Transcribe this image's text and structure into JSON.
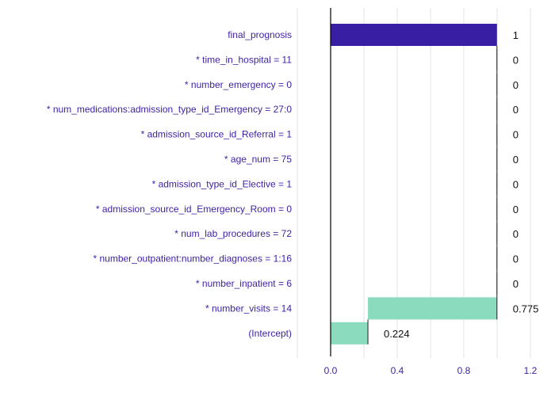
{
  "chart_data": {
    "type": "bar",
    "subtype": "break-down",
    "rows": [
      {
        "label": "final_prognosis",
        "start": 0,
        "end": 0.999,
        "display": "1",
        "kind": "prediction"
      },
      {
        "label": "* time_in_hospital = 11",
        "start": 0.999,
        "end": 0.999,
        "display": "0",
        "kind": "contribution"
      },
      {
        "label": "* number_emergency = 0",
        "start": 0.999,
        "end": 0.999,
        "display": "0",
        "kind": "contribution"
      },
      {
        "label": "* num_medications:admission_type_id_Emergency = 27:0",
        "start": 0.999,
        "end": 0.999,
        "display": "0",
        "kind": "contribution"
      },
      {
        "label": "* admission_source_id_Referral = 1",
        "start": 0.999,
        "end": 0.999,
        "display": "0",
        "kind": "contribution"
      },
      {
        "label": "* age_num = 75",
        "start": 0.999,
        "end": 0.999,
        "display": "0",
        "kind": "contribution"
      },
      {
        "label": "* admission_type_id_Elective = 1",
        "start": 0.999,
        "end": 0.999,
        "display": "0",
        "kind": "contribution"
      },
      {
        "label": "* admission_source_id_Emergency_Room = 0",
        "start": 0.999,
        "end": 0.999,
        "display": "0",
        "kind": "contribution"
      },
      {
        "label": "* num_lab_procedures = 72",
        "start": 0.999,
        "end": 0.999,
        "display": "0",
        "kind": "contribution"
      },
      {
        "label": "* number_outpatient:number_diagnoses = 1:16",
        "start": 0.999,
        "end": 0.999,
        "display": "0",
        "kind": "contribution"
      },
      {
        "label": "* number_inpatient = 6",
        "start": 0.999,
        "end": 0.999,
        "display": "0",
        "kind": "contribution"
      },
      {
        "label": "* number_visits = 14",
        "start": 0.224,
        "end": 0.999,
        "display": "0.775",
        "kind": "contribution"
      },
      {
        "label": "(Intercept)",
        "start": 0,
        "end": 0.224,
        "display": "0.224",
        "kind": "intercept"
      }
    ],
    "x_ticks": [
      "0.0",
      "0.4",
      "0.8",
      "1.2"
    ],
    "x_tick_values": [
      0,
      0.4,
      0.8,
      1.2
    ],
    "xlim": [
      -0.2,
      1.3
    ],
    "title": "",
    "xlabel": "",
    "ylabel": "",
    "grid": true,
    "colors": {
      "prediction": "#371ea3",
      "positive": "#8bdcbe",
      "label_text": "#3d1fa3",
      "value_text": "#111111",
      "grid": "#e3e3e3",
      "baseline": "#000000"
    }
  }
}
